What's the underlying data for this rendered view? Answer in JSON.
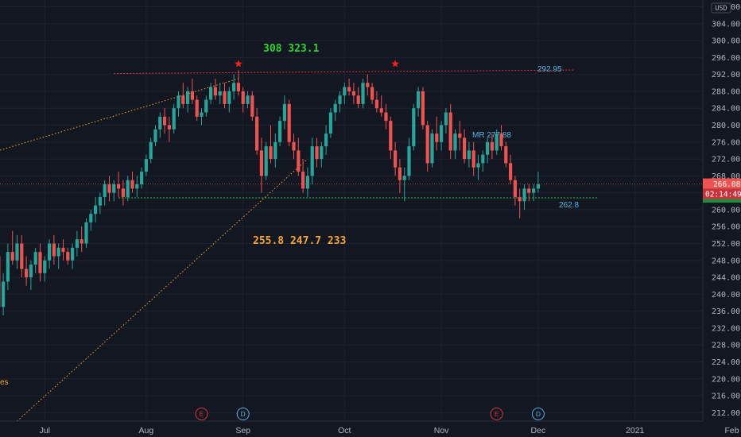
{
  "chart_data": {
    "type": "candlestick",
    "currency": "USD",
    "y_range": [
      210,
      308
    ],
    "price_ticks": [
      212,
      216,
      220,
      224,
      228,
      232,
      236,
      240,
      244,
      248,
      252,
      256,
      260,
      264,
      268,
      272,
      276,
      280,
      284,
      288,
      292,
      296,
      300,
      304,
      308
    ],
    "time_ticks": [
      {
        "label": "Jul",
        "bar": 10
      },
      {
        "label": "Aug",
        "bar": 32
      },
      {
        "label": "Sep",
        "bar": 53
      },
      {
        "label": "Oct",
        "bar": 75
      },
      {
        "label": "Nov",
        "bar": 96
      },
      {
        "label": "Dec",
        "bar": 117
      },
      {
        "label": "2021",
        "bar": 138
      },
      {
        "label": "Feb",
        "bar": 159
      }
    ],
    "last_price": "266.08",
    "countdown": "02:14:49",
    "colors": {
      "up": "#26a69a",
      "down": "#ef5350",
      "background": "#131722",
      "grid": "#1e2230",
      "neutral_line": "#b2b5be"
    },
    "resistance": {
      "value": 292.95,
      "label": "292.95",
      "color": "#e0343a"
    },
    "support": {
      "value": 262.8,
      "label": "262.8",
      "color": "#26c940"
    },
    "mean_reversion": {
      "value": 277.88,
      "label": "MR 277.88",
      "color": "#4fb6e0"
    },
    "upside_targets": {
      "text": "308  323.1",
      "color": "#2fd22f"
    },
    "downside_targets": {
      "text": "255.8  247.7  233",
      "color": "#f7a521"
    },
    "stray_text": "es",
    "events": [
      {
        "letter": "E",
        "bar": 44,
        "color": "#e0343a"
      },
      {
        "letter": "D",
        "bar": 53,
        "color": "#4fb6e0"
      },
      {
        "letter": "E",
        "bar": 108,
        "color": "#e0343a"
      },
      {
        "letter": "D",
        "bar": 117,
        "color": "#4fb6e0"
      }
    ],
    "stars": [
      {
        "bar": 52,
        "price": 294.5
      },
      {
        "bar": 86,
        "price": 294.5
      }
    ],
    "trendlines": [
      {
        "from": {
          "bar": -3,
          "price": 273
        },
        "to": {
          "bar": 52,
          "price": 291
        },
        "color": "#f7a521"
      },
      {
        "from": {
          "bar": 4,
          "price": 210
        },
        "to": {
          "bar": 67,
          "price": 272
        },
        "color": "#f7a521"
      }
    ],
    "ohlc": [
      [
        249,
        251,
        234,
        237
      ],
      [
        237,
        245,
        235,
        243
      ],
      [
        243,
        252,
        241,
        250
      ],
      [
        250,
        255,
        247,
        248
      ],
      [
        248,
        254,
        246,
        252
      ],
      [
        252,
        254,
        244,
        246
      ],
      [
        246,
        249,
        242,
        244
      ],
      [
        244,
        248,
        241,
        247
      ],
      [
        247,
        251,
        245,
        250
      ],
      [
        250,
        252,
        243,
        245
      ],
      [
        245,
        249,
        243,
        248
      ],
      [
        248,
        253,
        246,
        252
      ],
      [
        252,
        254,
        247,
        249
      ],
      [
        249,
        252,
        246,
        251
      ],
      [
        251,
        253,
        248,
        250
      ],
      [
        250,
        251,
        247,
        248
      ],
      [
        248,
        252,
        246,
        251
      ],
      [
        251,
        255,
        249,
        253
      ],
      [
        253,
        256,
        250,
        252
      ],
      [
        252,
        258,
        251,
        257
      ],
      [
        257,
        260,
        255,
        259
      ],
      [
        259,
        263,
        257,
        261
      ],
      [
        261,
        264,
        259,
        263
      ],
      [
        263,
        267,
        261,
        266
      ],
      [
        266,
        268,
        262,
        264
      ],
      [
        264,
        267,
        262,
        266
      ],
      [
        266,
        269,
        263,
        265
      ],
      [
        265,
        267,
        261,
        263
      ],
      [
        263,
        268,
        262,
        267
      ],
      [
        267,
        269,
        264,
        265
      ],
      [
        265,
        268,
        263,
        266
      ],
      [
        266,
        270,
        265,
        269
      ],
      [
        269,
        273,
        268,
        272
      ],
      [
        272,
        277,
        271,
        276
      ],
      [
        276,
        280,
        275,
        279
      ],
      [
        279,
        283,
        277,
        282
      ],
      [
        282,
        284,
        278,
        280
      ],
      [
        280,
        282,
        276,
        279
      ],
      [
        279,
        285,
        278,
        284
      ],
      [
        284,
        288,
        282,
        287
      ],
      [
        287,
        290,
        284,
        285
      ],
      [
        285,
        289,
        283,
        288
      ],
      [
        288,
        291,
        285,
        286
      ],
      [
        286,
        287,
        281,
        282
      ],
      [
        282,
        284,
        280,
        283
      ],
      [
        283,
        287,
        282,
        286
      ],
      [
        286,
        290,
        285,
        289
      ],
      [
        289,
        291,
        286,
        287
      ],
      [
        287,
        290,
        285,
        288
      ],
      [
        288,
        290,
        284,
        285
      ],
      [
        285,
        289,
        283,
        288
      ],
      [
        288,
        292,
        286,
        290
      ],
      [
        290,
        293,
        287,
        288
      ],
      [
        288,
        289,
        283,
        285
      ],
      [
        285,
        288,
        284,
        287
      ],
      [
        287,
        288,
        281,
        282
      ],
      [
        282,
        284,
        273,
        274
      ],
      [
        274,
        277,
        264,
        268
      ],
      [
        268,
        276,
        267,
        275
      ],
      [
        275,
        280,
        271,
        272
      ],
      [
        272,
        278,
        270,
        276
      ],
      [
        276,
        282,
        275,
        281
      ],
      [
        281,
        287,
        279,
        285
      ],
      [
        285,
        286,
        275,
        276
      ],
      [
        276,
        278,
        272,
        274
      ],
      [
        274,
        277,
        268,
        269
      ],
      [
        269,
        272,
        264,
        265
      ],
      [
        265,
        270,
        263,
        268
      ],
      [
        268,
        277,
        266,
        275
      ],
      [
        275,
        277,
        270,
        272
      ],
      [
        272,
        276,
        270,
        275
      ],
      [
        275,
        280,
        273,
        278
      ],
      [
        278,
        284,
        277,
        283
      ],
      [
        283,
        286,
        281,
        285
      ],
      [
        285,
        288,
        283,
        287
      ],
      [
        287,
        290,
        285,
        289
      ],
      [
        289,
        291,
        287,
        288
      ],
      [
        288,
        290,
        285,
        287
      ],
      [
        287,
        289,
        284,
        285
      ],
      [
        285,
        291,
        284,
        290
      ],
      [
        290,
        292,
        287,
        289
      ],
      [
        289,
        290,
        285,
        286
      ],
      [
        286,
        288,
        283,
        284
      ],
      [
        284,
        287,
        282,
        283
      ],
      [
        283,
        285,
        279,
        281
      ],
      [
        281,
        282,
        272,
        274
      ],
      [
        274,
        276,
        268,
        270
      ],
      [
        270,
        272,
        264,
        267
      ],
      [
        267,
        270,
        262,
        268
      ],
      [
        268,
        277,
        267,
        275
      ],
      [
        275,
        285,
        274,
        284
      ],
      [
        284,
        289,
        282,
        288
      ],
      [
        288,
        289,
        279,
        280
      ],
      [
        280,
        281,
        269,
        271
      ],
      [
        271,
        279,
        270,
        278
      ],
      [
        278,
        282,
        274,
        276
      ],
      [
        276,
        281,
        274,
        280
      ],
      [
        280,
        284,
        278,
        283
      ],
      [
        283,
        285,
        272,
        274
      ],
      [
        274,
        279,
        272,
        278
      ],
      [
        278,
        281,
        274,
        277
      ],
      [
        277,
        279,
        271,
        272
      ],
      [
        272,
        276,
        270,
        274
      ],
      [
        274,
        276,
        268,
        270
      ],
      [
        270,
        273,
        267,
        271
      ],
      [
        271,
        274,
        269,
        273
      ],
      [
        273,
        277,
        271,
        276
      ],
      [
        276,
        278,
        272,
        274
      ],
      [
        274,
        279,
        273,
        278
      ],
      [
        278,
        280,
        274,
        275
      ],
      [
        275,
        276,
        270,
        271
      ],
      [
        271,
        273,
        266,
        267
      ],
      [
        267,
        268,
        261,
        263
      ],
      [
        263,
        265,
        258,
        262
      ],
      [
        262,
        266,
        260,
        265
      ],
      [
        265,
        266,
        262,
        264
      ],
      [
        264,
        266,
        262,
        265
      ],
      [
        265,
        269,
        264,
        266
      ]
    ]
  }
}
